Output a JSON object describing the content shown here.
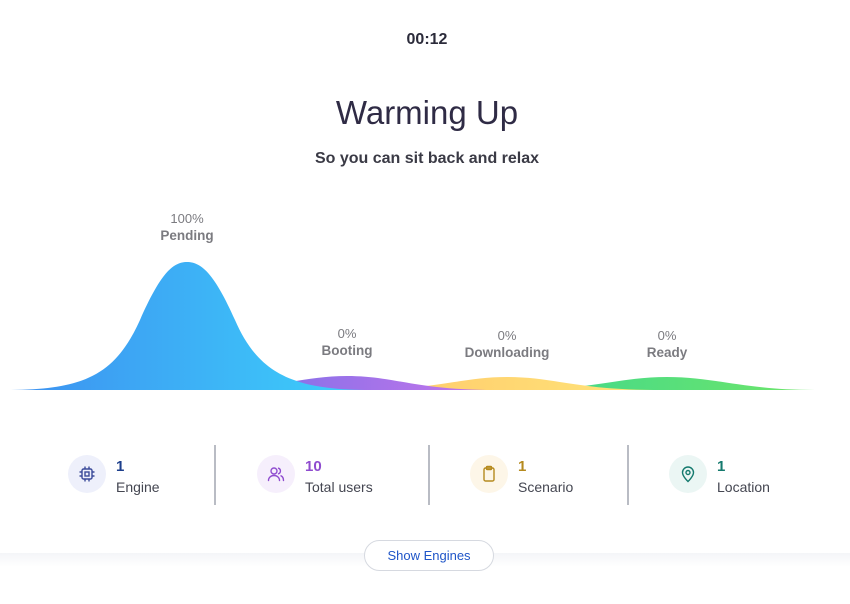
{
  "header": {
    "timer": "00:12",
    "title": "Warming Up",
    "subtitle": "So you can sit back and relax"
  },
  "stages": [
    {
      "percent": "100%",
      "name": "Pending",
      "color": "#3aa8f5"
    },
    {
      "percent": "0%",
      "name": "Booting",
      "color": "#a873e8"
    },
    {
      "percent": "0%",
      "name": "Downloading",
      "color": "#ffd66b"
    },
    {
      "percent": "0%",
      "name": "Ready",
      "color": "#5ee07a"
    }
  ],
  "stats": [
    {
      "value": "1",
      "label": "Engine",
      "icon": "chip-icon",
      "color": "#1d3f8c"
    },
    {
      "value": "10",
      "label": "Total users",
      "icon": "users-icon",
      "color": "#8f4ccf"
    },
    {
      "value": "1",
      "label": "Scenario",
      "icon": "clipboard-icon",
      "color": "#b58a1e"
    },
    {
      "value": "1",
      "label": "Location",
      "icon": "location-pin-icon",
      "color": "#157a6e"
    }
  ],
  "actions": {
    "show_engines": "Show Engines"
  }
}
